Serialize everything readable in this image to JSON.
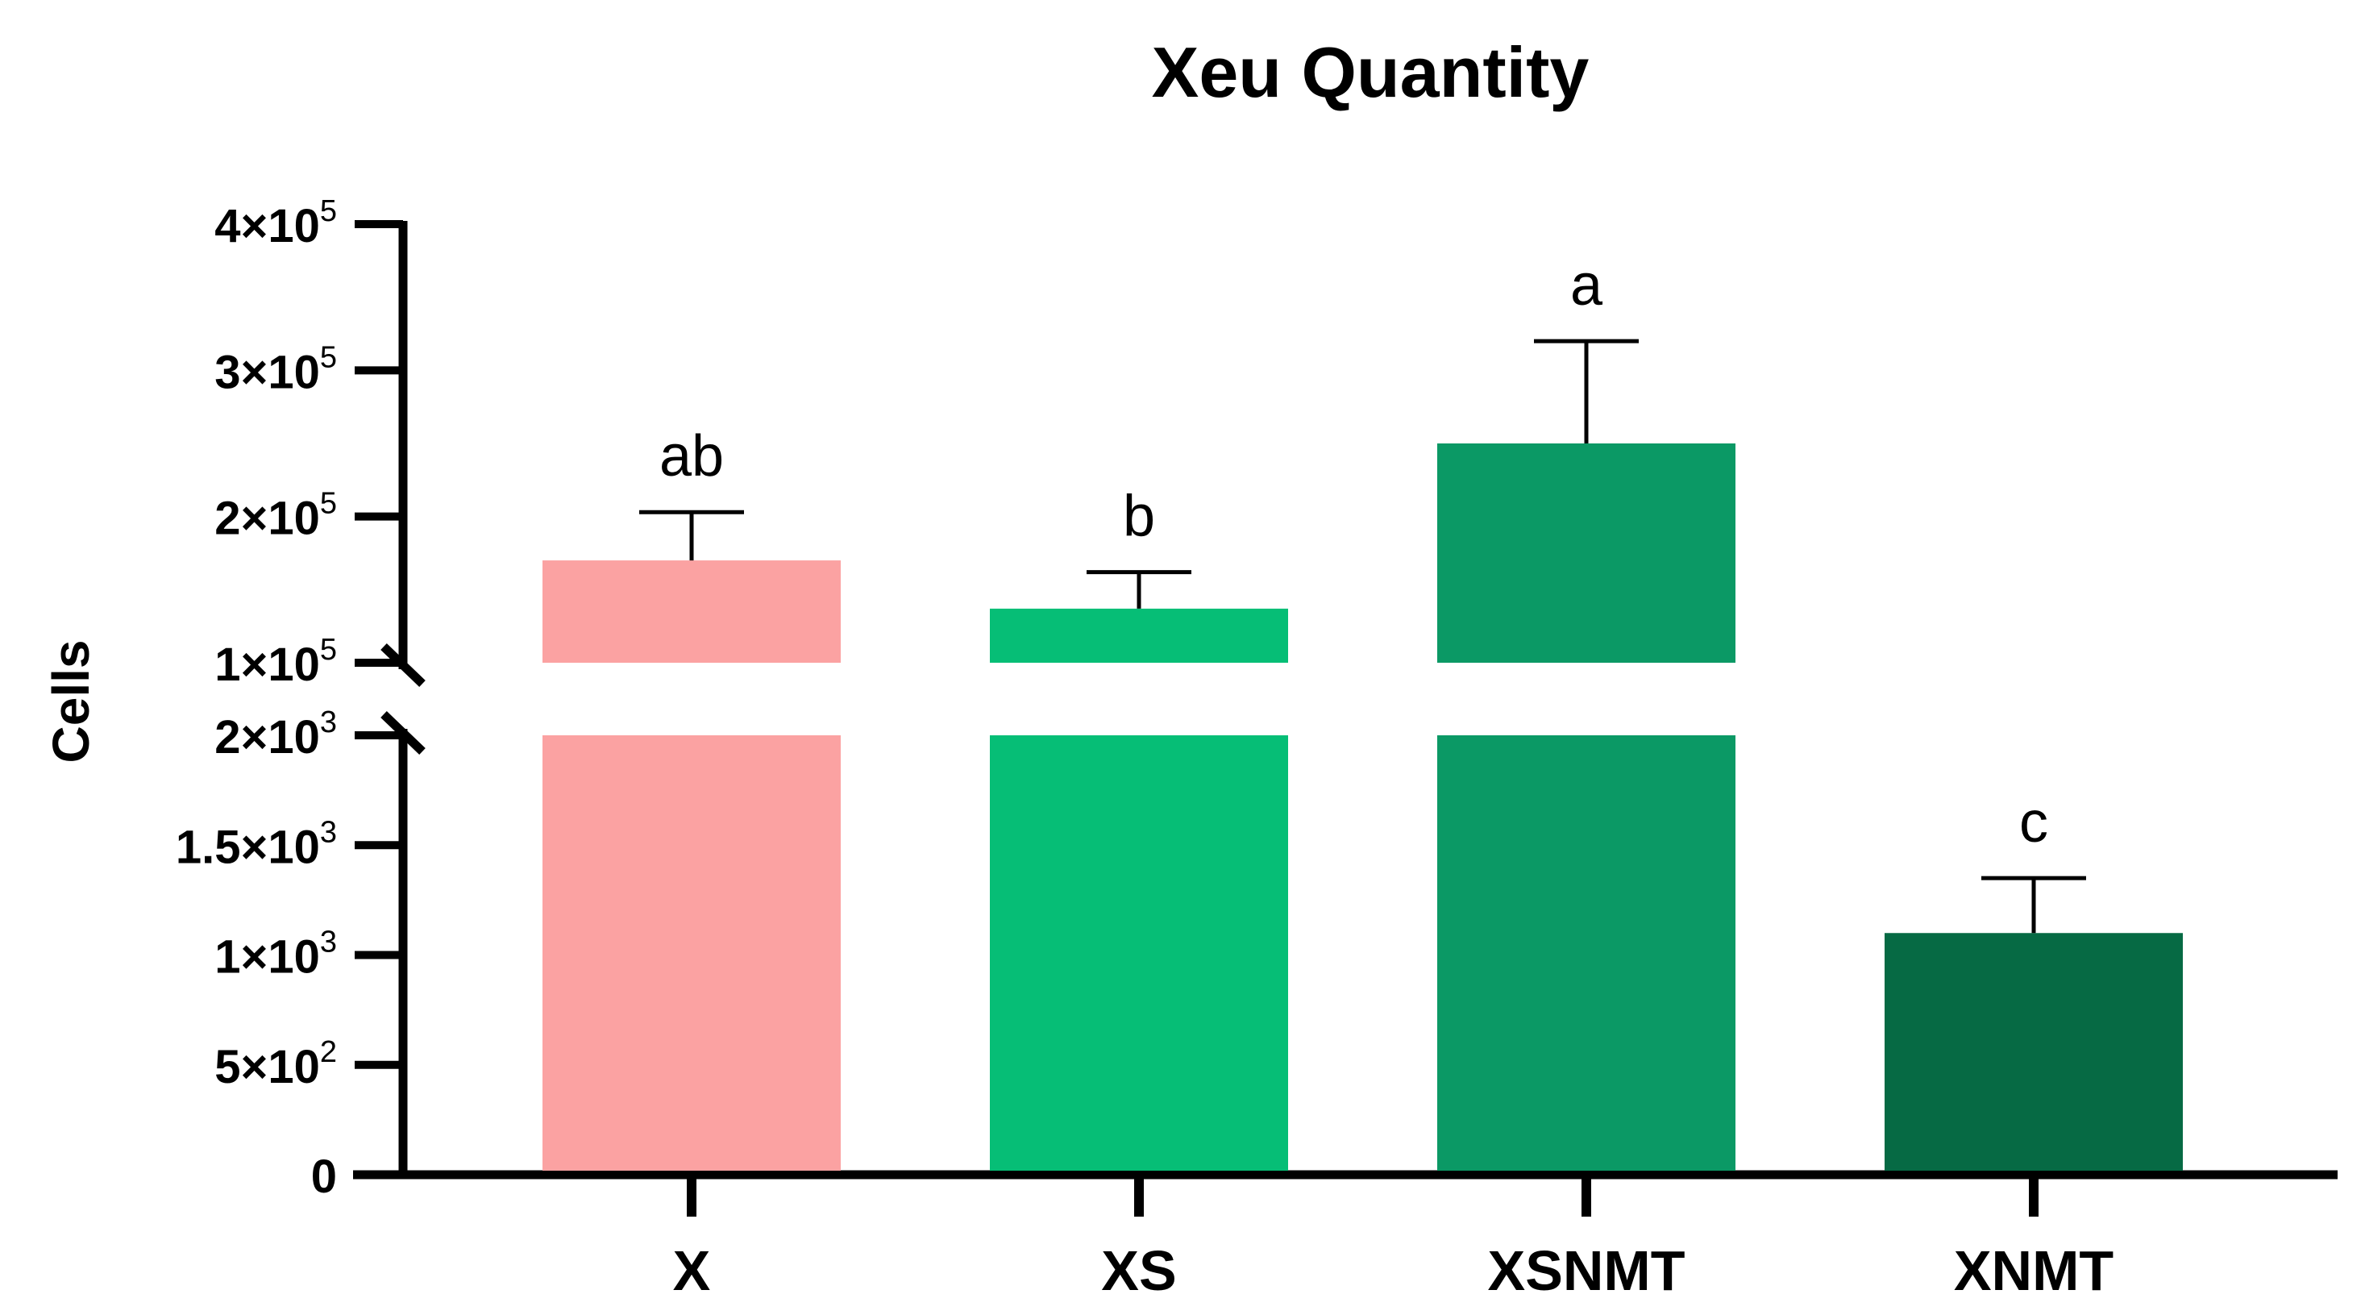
{
  "chart_data": {
    "type": "bar",
    "title": "Xeu Quantity",
    "xlabel": "",
    "ylabel": "Cells",
    "categories": [
      "X",
      "XS",
      "XSNMT",
      "XNMT"
    ],
    "values": [
      170000,
      137000,
      250000,
      1100
    ],
    "error_upper": [
      203000,
      162000,
      320000,
      1350
    ],
    "significance_letters": [
      "ab",
      "b",
      "a",
      "c"
    ],
    "colors": [
      "#FBA2A2",
      "#06BE76",
      "#0B9965",
      "#066A44"
    ],
    "y_axis": {
      "broken": true,
      "lower_segment": {
        "range": [
          0,
          2000
        ],
        "ticks": [
          {
            "value": 0,
            "base": "0",
            "exp": ""
          },
          {
            "value": 500,
            "base": "5×10",
            "exp": "2"
          },
          {
            "value": 1000,
            "base": "1×10",
            "exp": "3"
          },
          {
            "value": 1500,
            "base": "1.5×10",
            "exp": "3"
          },
          {
            "value": 2000,
            "base": "2×10",
            "exp": "3"
          }
        ]
      },
      "upper_segment": {
        "range": [
          100000,
          400000
        ],
        "ticks": [
          {
            "value": 100000,
            "base": "1×10",
            "exp": "5"
          },
          {
            "value": 200000,
            "base": "2×10",
            "exp": "5"
          },
          {
            "value": 300000,
            "base": "3×10",
            "exp": "5"
          },
          {
            "value": 400000,
            "base": "4×10",
            "exp": "5"
          }
        ]
      }
    },
    "grid": false,
    "legend": "none"
  }
}
